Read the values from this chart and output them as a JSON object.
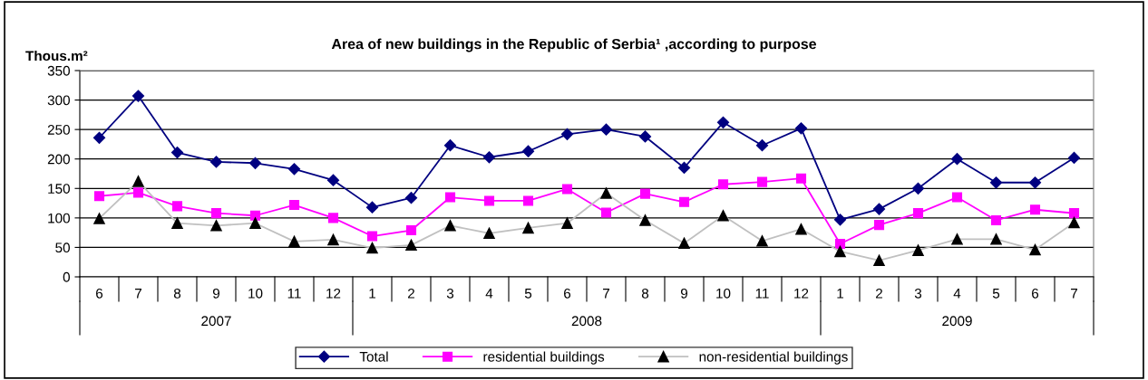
{
  "chart_data": {
    "type": "line",
    "title": "Area of new buildings in the Republic of Serbia¹ ,according to purpose",
    "ylabel": "Thous.m²",
    "categories": [
      "6",
      "7",
      "8",
      "9",
      "10",
      "11",
      "12",
      "1",
      "2",
      "3",
      "4",
      "5",
      "6",
      "7",
      "8",
      "9",
      "10",
      "11",
      "12",
      "1",
      "2",
      "3",
      "4",
      "5",
      "6",
      "7"
    ],
    "annotations": [
      "2007",
      "2008",
      "2009"
    ],
    "ylim": [
      0,
      350
    ],
    "yticks": [
      0,
      50,
      100,
      150,
      200,
      250,
      300,
      350
    ],
    "grid": "y",
    "legend": "bottom",
    "series": [
      {
        "name": "Total",
        "color": "#000080",
        "marker": "diamond",
        "values": [
          236,
          307,
          211,
          195,
          193,
          183,
          164,
          118,
          134,
          223,
          203,
          213,
          242,
          250,
          238,
          185,
          262,
          223,
          252,
          97,
          115,
          150,
          200,
          160,
          160,
          202
        ]
      },
      {
        "name": "residential buildings",
        "color": "#ff00ff",
        "marker": "square",
        "values": [
          137,
          143,
          120,
          108,
          104,
          122,
          100,
          69,
          79,
          135,
          129,
          129,
          149,
          109,
          141,
          127,
          157,
          161,
          167,
          56,
          88,
          108,
          135,
          96,
          114,
          108
        ]
      },
      {
        "name": "non-residential buildings",
        "color": "#c0c0c0",
        "marker": "triangle",
        "values": [
          99,
          162,
          91,
          87,
          91,
          60,
          63,
          49,
          54,
          87,
          74,
          83,
          91,
          142,
          96,
          57,
          104,
          61,
          81,
          43,
          28,
          45,
          64,
          64,
          46,
          92
        ]
      }
    ]
  }
}
